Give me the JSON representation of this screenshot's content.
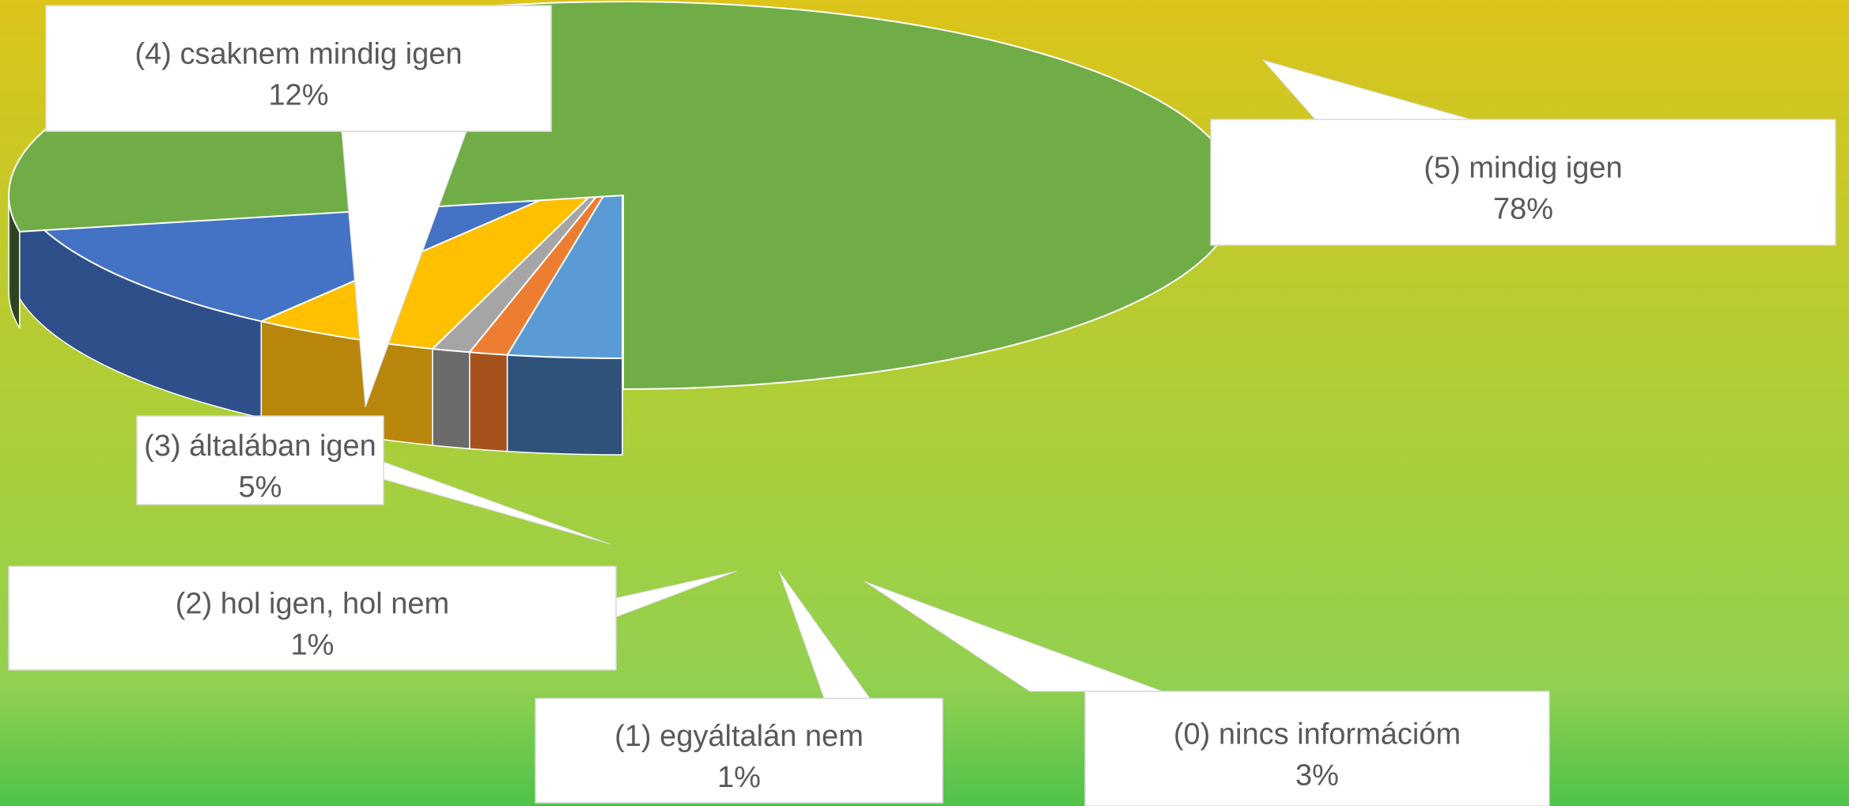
{
  "chart_data": {
    "type": "pie",
    "title": "",
    "style": "3d-exploded-slice",
    "categories": [
      "(0) nincs információm",
      "(1) egyáltalán nem",
      "(2) hol igen, hol nem",
      "(3) általában igen",
      "(4) csaknem mindig igen",
      "(5) mindig igen"
    ],
    "values": [
      3,
      1,
      1,
      5,
      12,
      78
    ],
    "value_labels": [
      "3%",
      "1%",
      "1%",
      "5%",
      "12%",
      "78%"
    ],
    "colors": [
      "#5b9bd5",
      "#ed7d31",
      "#a5a5a5",
      "#ffc000",
      "#4472c4",
      "#70ad47"
    ],
    "side_colors": [
      "#2f527a",
      "#a5511b",
      "#6b6b6b",
      "#b8860b",
      "#2e4f8a",
      "#2b4220"
    ],
    "legend": "none",
    "data_labels": "callouts",
    "background": {
      "top": "#dcc41a",
      "bottom": "#4fc24a"
    }
  }
}
